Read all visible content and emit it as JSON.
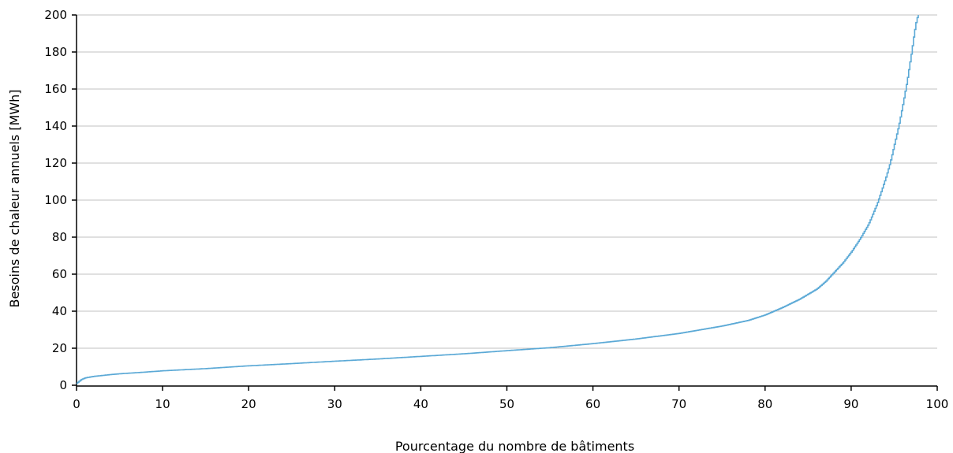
{
  "chart_data": {
    "type": "line",
    "title": "",
    "xlabel": "Pourcentage du nombre de bâtiments",
    "ylabel": "Besoins de chaleur annuels [MWh]",
    "xlim": [
      0,
      100
    ],
    "ylim": [
      0,
      200
    ],
    "x_ticks": [
      0,
      10,
      20,
      30,
      40,
      50,
      60,
      70,
      80,
      90,
      100
    ],
    "y_ticks": [
      0,
      20,
      40,
      60,
      80,
      100,
      120,
      140,
      160,
      180,
      200
    ],
    "grid": "horizontal",
    "line_style": "step",
    "line_color": "#5ba9d6",
    "series": [
      {
        "x": [
          0,
          0.5,
          1,
          2,
          3,
          4,
          5,
          7,
          10,
          15,
          20,
          25,
          30,
          35,
          40,
          45,
          50,
          55,
          60,
          65,
          70,
          75,
          78,
          80,
          82,
          84,
          86,
          87,
          88,
          89,
          90,
          91,
          92,
          93,
          94,
          94.5,
          95,
          95.5,
          96,
          96.5,
          97,
          97.3,
          97.6,
          97.8
        ],
        "y": [
          1,
          3,
          4,
          4.8,
          5.3,
          5.8,
          6.2,
          6.8,
          7.8,
          9.0,
          10.5,
          11.7,
          13.0,
          14.2,
          15.6,
          17.0,
          18.7,
          20.3,
          22.5,
          25.0,
          28.0,
          32.0,
          35.0,
          38.0,
          42.0,
          46.5,
          52.0,
          56.0,
          61.0,
          66.0,
          72.0,
          79.0,
          87.0,
          98.0,
          112.0,
          120.0,
          130.0,
          140.0,
          152.0,
          165.0,
          180.0,
          190.0,
          198.0,
          200.0
        ]
      }
    ]
  }
}
